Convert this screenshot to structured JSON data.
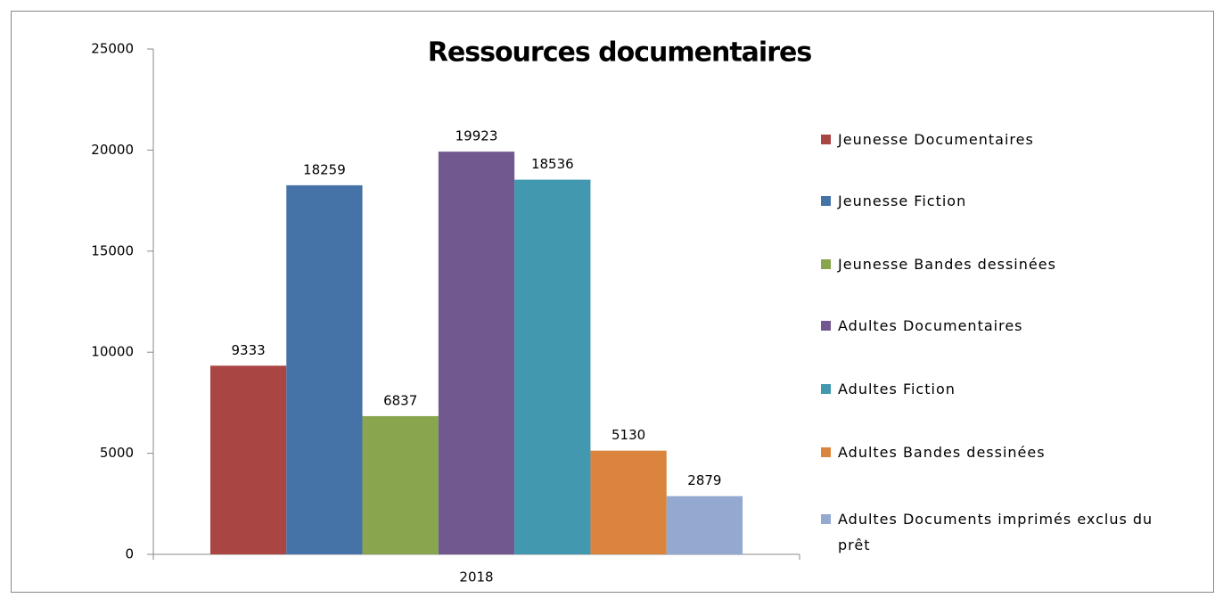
{
  "chart_data": {
    "type": "bar",
    "title": "Ressources documentaires",
    "categories": [
      "2018"
    ],
    "series": [
      {
        "name": "Jeunesse Documentaires",
        "color": "#a94543",
        "values": [
          9333
        ]
      },
      {
        "name": "Jeunesse Fiction",
        "color": "#4572a7",
        "values": [
          18259
        ]
      },
      {
        "name": "Jeunesse Bandes dessinées",
        "color": "#89a54e",
        "values": [
          6837
        ]
      },
      {
        "name": "Adultes Documentaires",
        "color": "#71588f",
        "values": [
          19923
        ]
      },
      {
        "name": "Adultes Fiction",
        "color": "#4198af",
        "values": [
          18536
        ]
      },
      {
        "name": "Adultes Bandes dessinées",
        "color": "#db843d",
        "values": [
          5130
        ]
      },
      {
        "name": "Adultes Documents imprimés exclus du prêt",
        "color": "#93a9cf",
        "values": [
          2879
        ]
      }
    ],
    "ylim": [
      0,
      25000
    ],
    "yticks": [
      0,
      5000,
      10000,
      15000,
      20000,
      25000
    ],
    "grid": false,
    "legend": "right"
  }
}
